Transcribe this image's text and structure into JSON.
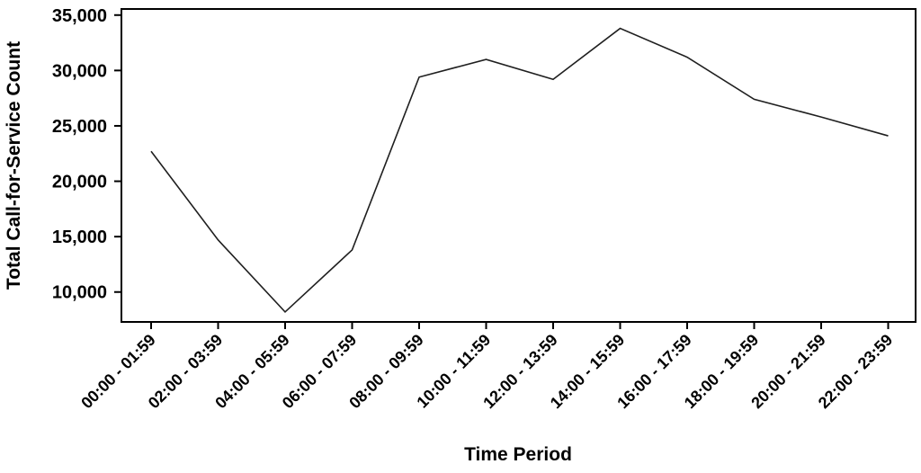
{
  "chart_data": {
    "type": "line",
    "title": "",
    "xlabel": "Time Period",
    "ylabel": "Total Call-for-Service Count",
    "categories": [
      "00:00 - 01:59",
      "02:00 - 03:59",
      "04:00 - 05:59",
      "06:00 - 07:59",
      "08:00 - 09:59",
      "10:00 - 11:59",
      "12:00 - 13:59",
      "14:00 - 15:59",
      "16:00 - 17:59",
      "18:00 - 19:59",
      "20:00 - 21:59",
      "22:00 - 23:59"
    ],
    "values": [
      22700,
      14700,
      8200,
      13800,
      29400,
      31000,
      29200,
      33800,
      31200,
      27400,
      25800,
      24100
    ],
    "ylim": [
      7300,
      35550
    ],
    "yticks": [
      10000,
      15000,
      20000,
      25000,
      30000,
      35000
    ],
    "ytick_labels": [
      "10,000",
      "15,000",
      "20,000",
      "25,000",
      "30,000",
      "35,000"
    ],
    "grid": false,
    "legend": "none",
    "line_color": "#1f1f1f",
    "axis_color": "#000000"
  }
}
